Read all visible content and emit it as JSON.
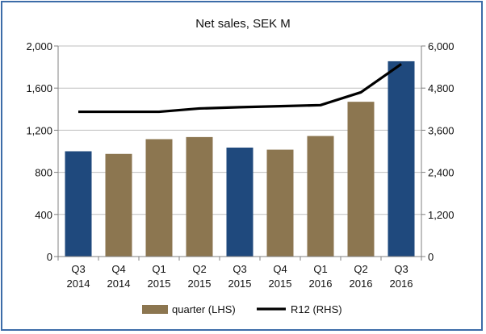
{
  "chart_data": {
    "type": "bar",
    "title": "Net sales, SEK M",
    "categories": [
      [
        "Q3",
        "2014"
      ],
      [
        "Q4",
        "2014"
      ],
      [
        "Q1",
        "2015"
      ],
      [
        "Q2",
        "2015"
      ],
      [
        "Q3",
        "2015"
      ],
      [
        "Q4",
        "2015"
      ],
      [
        "Q1",
        "2016"
      ],
      [
        "Q2",
        "2016"
      ],
      [
        "Q3",
        "2016"
      ]
    ],
    "series": [
      {
        "name": "quarter (LHS)",
        "type": "bar",
        "axis": "left",
        "values": [
          1000,
          975,
          1115,
          1135,
          1035,
          1015,
          1145,
          1470,
          1855
        ],
        "bar_colors": [
          "#1f497d",
          "#8c7650",
          "#8c7650",
          "#8c7650",
          "#1f497d",
          "#8c7650",
          "#8c7650",
          "#8c7650",
          "#1f497d"
        ]
      },
      {
        "name": "R12 (RHS)",
        "type": "line",
        "axis": "right",
        "values": [
          4125,
          4125,
          4125,
          4220,
          4255,
          4285,
          4315,
          4680,
          5485
        ],
        "color": "#000000"
      }
    ],
    "left_axis": {
      "min": 0,
      "max": 2000,
      "ticks": [
        "0",
        "400",
        "800",
        "1,200",
        "1,600",
        "2,000"
      ],
      "tick_values": [
        0,
        400,
        800,
        1200,
        1600,
        2000
      ]
    },
    "right_axis": {
      "min": 0,
      "max": 6000,
      "ticks": [
        "0",
        "1,200",
        "2,400",
        "3,600",
        "4,800",
        "6,000"
      ],
      "tick_values": [
        0,
        1200,
        2400,
        3600,
        4800,
        6000
      ]
    },
    "grid": true,
    "legend": {
      "position": "bottom",
      "items": [
        {
          "label": "quarter (LHS)",
          "symbol": "box",
          "color": "#8c7650"
        },
        {
          "label": "R12 (RHS)",
          "symbol": "line",
          "color": "#000000"
        }
      ]
    }
  },
  "colors": {
    "frame_border": "#3c6ca8",
    "gridline": "#bfbfbf",
    "axis": "#808080"
  }
}
